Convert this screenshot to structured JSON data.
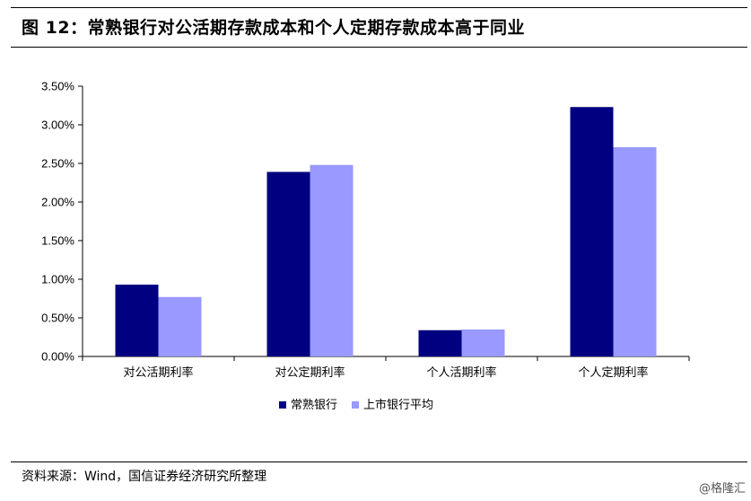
{
  "figure": {
    "title": "图 12：常熟银行对公活期存款成本和个人定期存款成本高于同业",
    "source": "资料来源：Wind，国信证券经济研究所整理",
    "watermark": "@格隆汇"
  },
  "chart_data": {
    "type": "bar",
    "categories": [
      "对公活期利率",
      "对公定期利率",
      "个人活期利率",
      "个人定期利率"
    ],
    "series": [
      {
        "name": "常熟银行",
        "color": "#000080",
        "values": [
          0.93,
          2.39,
          0.34,
          3.23
        ]
      },
      {
        "name": "上市银行平均",
        "color": "#9999ff",
        "values": [
          0.77,
          2.48,
          0.35,
          2.71
        ]
      }
    ],
    "yticks": [
      "0.00%",
      "0.50%",
      "1.00%",
      "1.50%",
      "2.00%",
      "2.50%",
      "3.00%",
      "3.50%"
    ],
    "ylim": [
      0,
      3.5
    ],
    "unit": "%",
    "grid": false,
    "legend_position": "bottom"
  }
}
